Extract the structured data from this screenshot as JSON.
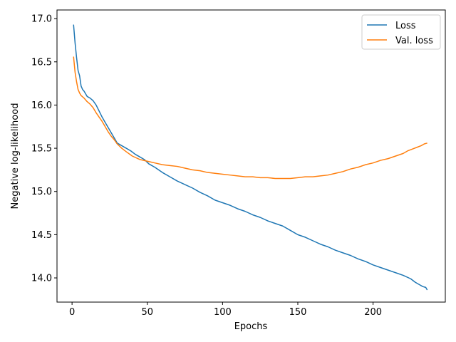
{
  "chart_data": {
    "type": "line",
    "title": "",
    "xlabel": "Epochs",
    "ylabel": "Negative log-likelihood",
    "xlim": [
      -10,
      248
    ],
    "ylim": [
      13.72,
      17.1
    ],
    "xticks": [
      0,
      50,
      100,
      150,
      200
    ],
    "yticks": [
      14.0,
      14.5,
      15.0,
      15.5,
      16.0,
      16.5,
      17.0
    ],
    "xtick_labels": [
      "0",
      "50",
      "100",
      "150",
      "200"
    ],
    "ytick_labels": [
      "14.0",
      "14.5",
      "15.0",
      "15.5",
      "16.0",
      "16.5",
      "17.0"
    ],
    "grid": false,
    "legend_position": "top-right",
    "series": [
      {
        "name": "Loss",
        "color": "#1f77b4",
        "x": [
          1,
          2,
          3,
          4,
          5,
          6,
          7,
          8,
          10,
          12,
          14,
          16,
          18,
          20,
          22,
          24,
          26,
          28,
          30,
          33,
          36,
          39,
          42,
          45,
          48,
          51,
          55,
          60,
          65,
          70,
          75,
          80,
          85,
          90,
          95,
          100,
          105,
          110,
          115,
          120,
          125,
          130,
          135,
          140,
          145,
          150,
          155,
          160,
          165,
          170,
          175,
          180,
          185,
          190,
          195,
          200,
          205,
          210,
          215,
          220,
          225,
          228,
          231,
          233,
          235,
          236
        ],
        "y": [
          16.93,
          16.72,
          16.55,
          16.4,
          16.34,
          16.22,
          16.18,
          16.16,
          16.1,
          16.08,
          16.05,
          16.0,
          15.93,
          15.86,
          15.8,
          15.74,
          15.68,
          15.62,
          15.56,
          15.53,
          15.5,
          15.47,
          15.43,
          15.4,
          15.37,
          15.32,
          15.28,
          15.22,
          15.17,
          15.12,
          15.08,
          15.04,
          14.99,
          14.95,
          14.9,
          14.87,
          14.84,
          14.8,
          14.77,
          14.73,
          14.7,
          14.66,
          14.63,
          14.6,
          14.55,
          14.5,
          14.47,
          14.43,
          14.39,
          14.36,
          14.32,
          14.29,
          14.26,
          14.22,
          14.19,
          14.15,
          14.12,
          14.09,
          14.06,
          14.03,
          13.99,
          13.95,
          13.92,
          13.9,
          13.89,
          13.86
        ]
      },
      {
        "name": "Val. loss",
        "color": "#ff7f0e",
        "x": [
          1,
          2,
          3,
          4,
          5,
          6,
          8,
          10,
          12,
          14,
          16,
          18,
          20,
          22,
          24,
          26,
          28,
          30,
          33,
          36,
          40,
          45,
          50,
          55,
          60,
          65,
          70,
          75,
          80,
          85,
          90,
          95,
          100,
          105,
          110,
          115,
          120,
          125,
          130,
          135,
          140,
          145,
          150,
          155,
          160,
          165,
          170,
          175,
          180,
          185,
          190,
          195,
          200,
          205,
          210,
          215,
          220,
          223,
          226,
          229,
          232,
          234,
          236
        ],
        "y": [
          16.56,
          16.38,
          16.27,
          16.18,
          16.14,
          16.11,
          16.08,
          16.04,
          16.01,
          15.97,
          15.91,
          15.86,
          15.81,
          15.75,
          15.69,
          15.64,
          15.6,
          15.55,
          15.5,
          15.46,
          15.41,
          15.37,
          15.35,
          15.33,
          15.31,
          15.3,
          15.29,
          15.27,
          15.25,
          15.24,
          15.22,
          15.21,
          15.2,
          15.19,
          15.18,
          15.17,
          15.17,
          15.16,
          15.16,
          15.15,
          15.15,
          15.15,
          15.16,
          15.17,
          15.17,
          15.18,
          15.19,
          15.21,
          15.23,
          15.26,
          15.28,
          15.31,
          15.33,
          15.36,
          15.38,
          15.41,
          15.44,
          15.47,
          15.49,
          15.51,
          15.53,
          15.55,
          15.56
        ]
      }
    ]
  }
}
